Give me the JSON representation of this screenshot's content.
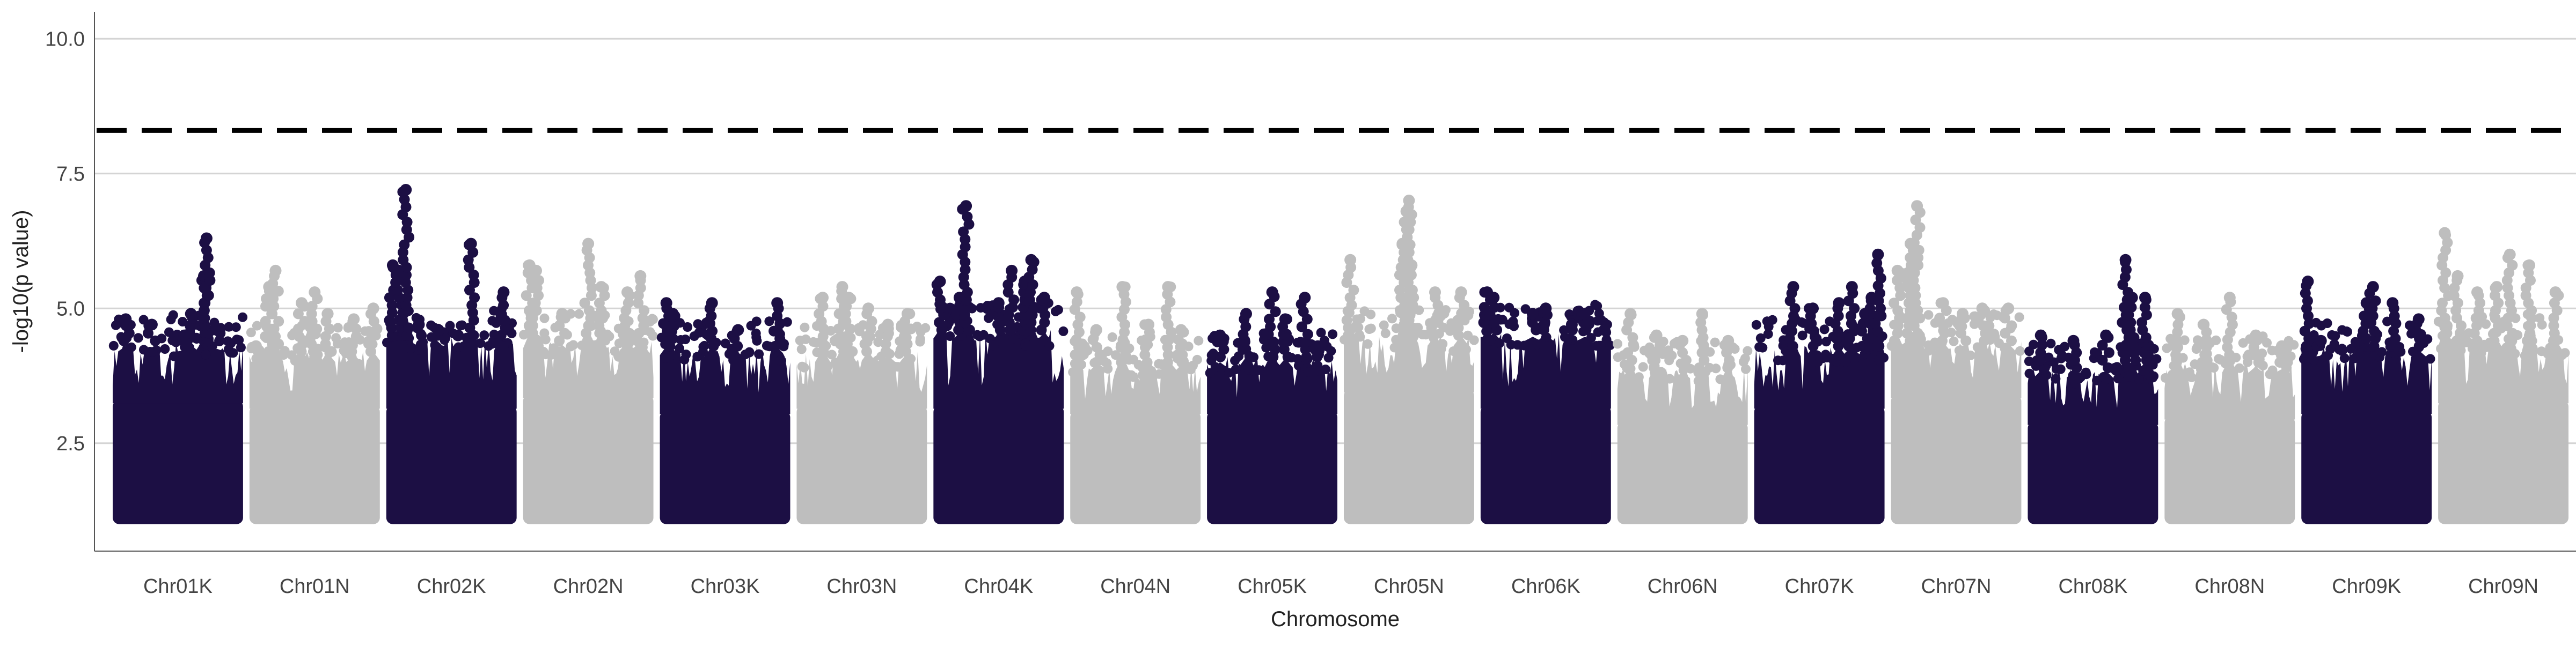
{
  "chart_data": {
    "type": "scatter",
    "subtype": "manhattan",
    "title": "",
    "xlabel": "Chromosome",
    "ylabel": "-log10(p value)",
    "ylim": [
      0.5,
      10.5
    ],
    "yticks": [
      2.5,
      5.0,
      7.5,
      10.0
    ],
    "ytick_labels": [
      "2.5",
      "5.0",
      "7.5",
      "10.0"
    ],
    "grid": "horizontal",
    "significance_threshold": 8.3,
    "colors": {
      "dark": "#1c0f44",
      "light": "#bebebe",
      "threshold": "#000000",
      "grid": "#d4d4d4"
    },
    "chromosomes": [
      {
        "name": "Chr01K",
        "color": "dark",
        "floor": 3.3,
        "top_cluster": 4.4,
        "peaks": [
          [
            0.1,
            4.8
          ],
          [
            0.3,
            4.7
          ],
          [
            0.55,
            4.5
          ],
          [
            0.6,
            4.9
          ],
          [
            0.7,
            5.6
          ],
          [
            0.72,
            6.3
          ],
          [
            0.8,
            4.6
          ]
        ]
      },
      {
        "name": "Chr01N",
        "color": "light",
        "floor": 3.2,
        "top_cluster": 4.2,
        "peaks": [
          [
            0.05,
            4.3
          ],
          [
            0.15,
            5.4
          ],
          [
            0.2,
            5.7
          ],
          [
            0.4,
            5.1
          ],
          [
            0.5,
            5.3
          ],
          [
            0.6,
            4.9
          ],
          [
            0.8,
            4.8
          ],
          [
            0.95,
            5.0
          ]
        ]
      },
      {
        "name": "Chr02K",
        "color": "dark",
        "floor": 3.2,
        "top_cluster": 4.5,
        "peaks": [
          [
            0.05,
            5.8
          ],
          [
            0.1,
            5.7
          ],
          [
            0.15,
            7.2
          ],
          [
            0.25,
            4.7
          ],
          [
            0.4,
            4.6
          ],
          [
            0.55,
            4.5
          ],
          [
            0.65,
            6.2
          ],
          [
            0.9,
            5.3
          ]
        ]
      },
      {
        "name": "Chr02N",
        "color": "light",
        "floor": 3.4,
        "top_cluster": 4.4,
        "peaks": [
          [
            0.05,
            5.8
          ],
          [
            0.1,
            5.7
          ],
          [
            0.3,
            4.9
          ],
          [
            0.5,
            6.2
          ],
          [
            0.6,
            5.4
          ],
          [
            0.8,
            5.3
          ],
          [
            0.9,
            5.6
          ]
        ]
      },
      {
        "name": "Chr03K",
        "color": "dark",
        "floor": 3.1,
        "top_cluster": 4.3,
        "peaks": [
          [
            0.05,
            5.1
          ],
          [
            0.1,
            4.9
          ],
          [
            0.4,
            5.1
          ],
          [
            0.6,
            4.6
          ],
          [
            0.9,
            5.1
          ]
        ]
      },
      {
        "name": "Chr03N",
        "color": "light",
        "floor": 3.2,
        "top_cluster": 4.2,
        "peaks": [
          [
            0.2,
            5.2
          ],
          [
            0.35,
            5.4
          ],
          [
            0.4,
            5.2
          ],
          [
            0.55,
            5.0
          ],
          [
            0.7,
            4.7
          ],
          [
            0.85,
            4.9
          ]
        ]
      },
      {
        "name": "Chr04K",
        "color": "dark",
        "floor": 3.2,
        "top_cluster": 4.6,
        "peaks": [
          [
            0.05,
            5.5
          ],
          [
            0.2,
            5.2
          ],
          [
            0.25,
            6.9
          ],
          [
            0.5,
            5.1
          ],
          [
            0.6,
            5.7
          ],
          [
            0.7,
            5.5
          ],
          [
            0.75,
            5.9
          ],
          [
            0.85,
            5.2
          ]
        ]
      },
      {
        "name": "Chr04N",
        "color": "light",
        "floor": 3.1,
        "top_cluster": 4.0,
        "peaks": [
          [
            0.05,
            5.3
          ],
          [
            0.2,
            4.6
          ],
          [
            0.4,
            5.4
          ],
          [
            0.6,
            4.7
          ],
          [
            0.75,
            5.4
          ],
          [
            0.85,
            4.6
          ]
        ]
      },
      {
        "name": "Chr05K",
        "color": "dark",
        "floor": 3.1,
        "top_cluster": 4.1,
        "peaks": [
          [
            0.1,
            4.5
          ],
          [
            0.3,
            4.9
          ],
          [
            0.5,
            5.3
          ],
          [
            0.6,
            4.8
          ],
          [
            0.75,
            5.2
          ],
          [
            0.85,
            4.3
          ]
        ]
      },
      {
        "name": "Chr05N",
        "color": "light",
        "floor": 3.5,
        "top_cluster": 4.5,
        "peaks": [
          [
            0.05,
            5.9
          ],
          [
            0.45,
            6.2
          ],
          [
            0.48,
            6.8
          ],
          [
            0.5,
            7.0
          ],
          [
            0.52,
            5.8
          ],
          [
            0.7,
            5.3
          ],
          [
            0.9,
            5.3
          ]
        ]
      },
      {
        "name": "Chr06K",
        "color": "dark",
        "floor": 3.2,
        "top_cluster": 4.6,
        "peaks": [
          [
            0.05,
            5.3
          ],
          [
            0.1,
            5.2
          ],
          [
            0.4,
            4.9
          ],
          [
            0.5,
            5.0
          ],
          [
            0.7,
            4.7
          ],
          [
            0.8,
            4.9
          ],
          [
            0.95,
            4.6
          ]
        ]
      },
      {
        "name": "Chr06N",
        "color": "light",
        "floor": 2.9,
        "top_cluster": 3.9,
        "peaks": [
          [
            0.1,
            4.9
          ],
          [
            0.3,
            4.5
          ],
          [
            0.5,
            4.4
          ],
          [
            0.65,
            4.9
          ],
          [
            0.85,
            4.4
          ]
        ]
      },
      {
        "name": "Chr07K",
        "color": "dark",
        "floor": 3.2,
        "top_cluster": 4.3,
        "peaks": [
          [
            0.3,
            5.4
          ],
          [
            0.45,
            5.0
          ],
          [
            0.65,
            5.1
          ],
          [
            0.75,
            5.4
          ],
          [
            0.85,
            4.9
          ],
          [
            0.9,
            5.2
          ],
          [
            0.95,
            6.0
          ]
        ]
      },
      {
        "name": "Chr07N",
        "color": "light",
        "floor": 3.4,
        "top_cluster": 4.4,
        "peaks": [
          [
            0.05,
            5.7
          ],
          [
            0.15,
            6.2
          ],
          [
            0.2,
            6.9
          ],
          [
            0.4,
            5.1
          ],
          [
            0.55,
            4.9
          ],
          [
            0.7,
            5.0
          ],
          [
            0.9,
            5.0
          ]
        ]
      },
      {
        "name": "Chr08K",
        "color": "dark",
        "floor": 2.9,
        "top_cluster": 3.9,
        "peaks": [
          [
            0.1,
            4.5
          ],
          [
            0.35,
            4.4
          ],
          [
            0.6,
            4.5
          ],
          [
            0.75,
            5.9
          ],
          [
            0.8,
            5.2
          ],
          [
            0.9,
            5.2
          ]
        ]
      },
      {
        "name": "Chr08N",
        "color": "light",
        "floor": 3.0,
        "top_cluster": 4.0,
        "peaks": [
          [
            0.1,
            4.9
          ],
          [
            0.3,
            4.7
          ],
          [
            0.5,
            5.2
          ],
          [
            0.7,
            4.5
          ],
          [
            0.9,
            4.3
          ]
        ]
      },
      {
        "name": "Chr09K",
        "color": "dark",
        "floor": 3.1,
        "top_cluster": 4.3,
        "peaks": [
          [
            0.05,
            5.5
          ],
          [
            0.15,
            4.4
          ],
          [
            0.5,
            5.1
          ],
          [
            0.55,
            5.4
          ],
          [
            0.7,
            5.1
          ],
          [
            0.9,
            4.8
          ]
        ]
      },
      {
        "name": "Chr09N",
        "color": "light",
        "floor": 3.3,
        "top_cluster": 4.4,
        "peaks": [
          [
            0.05,
            6.4
          ],
          [
            0.15,
            5.6
          ],
          [
            0.3,
            5.3
          ],
          [
            0.45,
            5.4
          ],
          [
            0.55,
            6.0
          ],
          [
            0.7,
            5.8
          ],
          [
            0.9,
            5.3
          ]
        ]
      }
    ]
  }
}
